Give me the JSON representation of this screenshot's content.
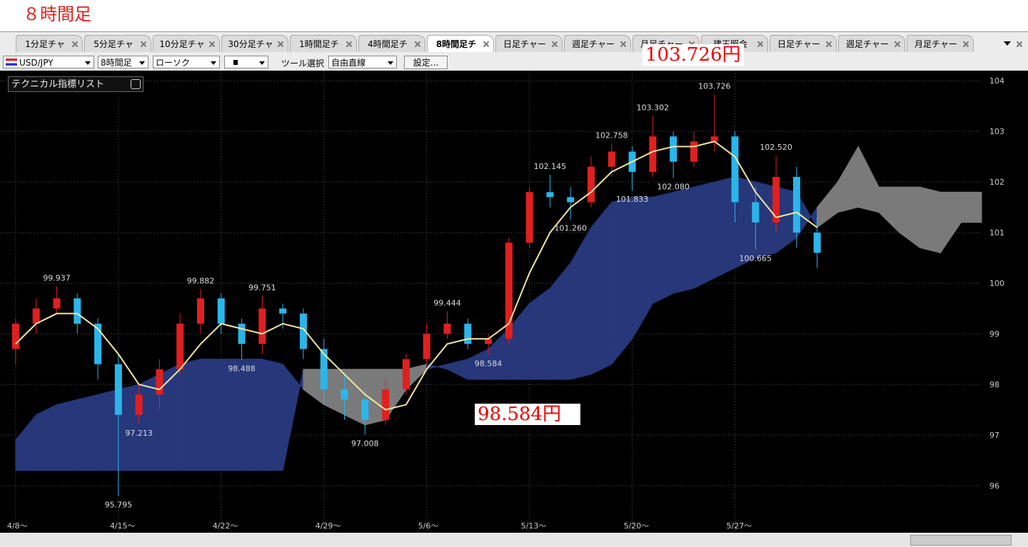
{
  "page_title": "８時間足",
  "tabs": {
    "items": [
      "1分足チャ",
      "5分足チャ",
      "10分足チャ",
      "30分足チャ",
      "1時間足チ",
      "4時間足チ",
      "8時間足チ",
      "日足チャー",
      "週足チャー",
      "月足チャー",
      "建玉照会",
      "日足チャー",
      "週足チャー",
      "月足チャー"
    ],
    "active": 6
  },
  "toolbar": {
    "symbol": "USD/JPY",
    "period": "8時間足",
    "chart_type": "ローソク",
    "tool_label": "ツール選択",
    "tool": "自由直線",
    "settings_button": "設定..."
  },
  "indicator_panel": {
    "title": "テクニカル指標リスト"
  },
  "callouts": [
    "103.726円",
    "98.584円"
  ],
  "chart_data": {
    "type": "candlestick",
    "x": [
      0,
      1,
      2,
      3,
      4,
      5,
      6,
      7,
      8,
      9,
      10,
      11,
      12,
      13,
      14,
      15,
      16,
      17,
      18,
      19,
      20,
      21,
      22,
      23,
      24,
      25,
      26,
      27,
      28,
      29,
      30,
      31,
      32,
      33,
      34,
      35,
      36,
      37,
      38,
      39
    ],
    "open": [
      98.7,
      99.2,
      99.5,
      99.7,
      99.2,
      98.4,
      97.4,
      97.8,
      98.3,
      99.2,
      99.7,
      99.2,
      98.8,
      99.5,
      99.4,
      98.7,
      97.9,
      97.7,
      97.3,
      97.9,
      98.5,
      99.0,
      99.2,
      98.8,
      98.9,
      100.8,
      101.8,
      101.7,
      101.6,
      102.3,
      102.6,
      102.2,
      102.9,
      102.4,
      102.8,
      102.9,
      101.6,
      101.2,
      102.1,
      101.0
    ],
    "high": [
      99.3,
      99.7,
      99.937,
      99.8,
      99.3,
      98.6,
      98.0,
      98.5,
      99.4,
      99.882,
      99.8,
      99.3,
      99.751,
      99.6,
      99.5,
      98.9,
      98.2,
      97.9,
      98.1,
      98.6,
      99.2,
      99.444,
      99.3,
      99.0,
      100.9,
      101.9,
      102.145,
      101.9,
      102.5,
      102.758,
      102.7,
      103.302,
      103.0,
      103.0,
      103.726,
      103.0,
      101.9,
      102.52,
      102.3,
      101.3
    ],
    "low": [
      98.4,
      99.0,
      99.4,
      99.0,
      98.1,
      95.795,
      97.213,
      97.5,
      98.2,
      99.0,
      99.0,
      98.488,
      98.6,
      99.1,
      98.5,
      97.6,
      97.3,
      97.008,
      97.2,
      97.8,
      98.4,
      98.9,
      98.7,
      98.584,
      98.8,
      100.7,
      101.5,
      101.26,
      101.5,
      102.1,
      101.833,
      102.1,
      102.08,
      102.3,
      102.6,
      101.2,
      100.665,
      101.0,
      100.7,
      100.3
    ],
    "close": [
      99.2,
      99.5,
      99.7,
      99.2,
      98.4,
      97.4,
      97.8,
      98.3,
      99.2,
      99.7,
      99.2,
      98.8,
      99.5,
      99.4,
      98.7,
      97.9,
      97.7,
      97.3,
      97.9,
      98.5,
      99.0,
      99.2,
      98.8,
      98.9,
      100.8,
      101.8,
      101.7,
      101.6,
      102.3,
      102.6,
      102.2,
      102.9,
      102.4,
      102.8,
      102.9,
      101.6,
      101.2,
      102.1,
      101.0,
      100.6
    ],
    "up_color": "#e02020",
    "down_color": "#2bb5ea",
    "ma": {
      "color": "#f3e6a0",
      "values": [
        98.8,
        99.2,
        99.4,
        99.4,
        99.1,
        98.6,
        98.0,
        97.9,
        98.3,
        98.8,
        99.2,
        99.1,
        99.0,
        99.2,
        99.1,
        98.6,
        98.2,
        97.8,
        97.5,
        97.6,
        98.3,
        98.8,
        98.9,
        98.9,
        99.2,
        100.2,
        101.0,
        101.5,
        101.8,
        102.2,
        102.4,
        102.6,
        102.7,
        102.7,
        102.8,
        102.5,
        101.8,
        101.3,
        101.4,
        101.1
      ]
    },
    "cloud": {
      "x": [
        0,
        1,
        2,
        3,
        4,
        5,
        6,
        7,
        8,
        9,
        10,
        11,
        12,
        13,
        14,
        15,
        16,
        17,
        18,
        19,
        20,
        21,
        22,
        23,
        24,
        25,
        26,
        27,
        28,
        29,
        30,
        31,
        32,
        33,
        34,
        35,
        36,
        37,
        38,
        39,
        40,
        41,
        42,
        43,
        44,
        45,
        46,
        47
      ],
      "span_a": [
        96.9,
        97.4,
        97.6,
        97.7,
        97.8,
        97.9,
        98.0,
        98.2,
        98.4,
        98.5,
        98.5,
        98.5,
        98.5,
        98.4,
        97.9,
        97.6,
        97.4,
        97.2,
        97.3,
        97.9,
        98.3,
        98.4,
        98.5,
        98.7,
        99.1,
        99.6,
        99.9,
        100.4,
        101.1,
        101.6,
        101.7,
        101.7,
        101.8,
        101.9,
        102.0,
        102.1,
        102.0,
        101.9,
        101.8,
        101.1,
        101.4,
        101.5,
        101.4,
        101.0,
        100.7,
        100.6,
        101.2,
        101.2
      ],
      "span_b": [
        96.3,
        96.3,
        96.3,
        96.3,
        96.3,
        96.3,
        96.3,
        96.3,
        96.3,
        96.3,
        96.3,
        96.3,
        96.3,
        96.3,
        98.3,
        98.3,
        98.3,
        98.3,
        98.3,
        98.3,
        98.4,
        98.3,
        98.1,
        98.1,
        98.1,
        98.1,
        98.1,
        98.1,
        98.2,
        98.4,
        98.9,
        99.6,
        99.8,
        99.9,
        100.1,
        100.3,
        100.5,
        100.6,
        100.9,
        101.5,
        102.0,
        102.7,
        101.9,
        101.9,
        101.9,
        101.8,
        101.8,
        101.8
      ],
      "color_up": "#26377a",
      "color_down": "#7a7a7a"
    },
    "annotations": [
      {
        "x": 2,
        "value": 99.937,
        "label": "99.937"
      },
      {
        "x": 9,
        "value": 99.882,
        "label": "99.882"
      },
      {
        "x": 12,
        "value": 99.751,
        "label": "99.751"
      },
      {
        "x": 11,
        "value": 98.488,
        "label": "98.488"
      },
      {
        "x": 6,
        "value": 97.213,
        "label": "97.213"
      },
      {
        "x": 5,
        "value": 95.795,
        "label": "95.795"
      },
      {
        "x": 17,
        "value": 97.008,
        "label": "97.008"
      },
      {
        "x": 21,
        "value": 99.444,
        "label": "99.444"
      },
      {
        "x": 23,
        "value": 98.584,
        "label": "98.584"
      },
      {
        "x": 26,
        "value": 102.145,
        "label": "102.145"
      },
      {
        "x": 27,
        "value": 101.26,
        "label": "101.260"
      },
      {
        "x": 29,
        "value": 102.758,
        "label": "102.758"
      },
      {
        "x": 30,
        "value": 101.833,
        "label": "101.833"
      },
      {
        "x": 31,
        "value": 103.302,
        "label": "103.302"
      },
      {
        "x": 32,
        "value": 102.08,
        "label": "102.080"
      },
      {
        "x": 34,
        "value": 103.726,
        "label": "103.726"
      },
      {
        "x": 37,
        "value": 102.52,
        "label": "102.520"
      },
      {
        "x": 36,
        "value": 100.665,
        "label": "100.665"
      }
    ],
    "xlim": [
      -0.76,
      47
    ],
    "xticks": [
      {
        "value": 0,
        "label": "4/8～"
      },
      {
        "value": 5,
        "label": "4/15～"
      },
      {
        "value": 10,
        "label": "4/22～"
      },
      {
        "value": 15,
        "label": "4/29～"
      },
      {
        "value": 20,
        "label": "5/6～"
      },
      {
        "value": 25,
        "label": "5/13～"
      },
      {
        "value": 30,
        "label": "5/20～"
      },
      {
        "value": 35,
        "label": "5/27～"
      }
    ],
    "ylim": [
      95.07,
      104.2
    ],
    "yticks": [
      96,
      97,
      98,
      99,
      100,
      101,
      102,
      103,
      104
    ],
    "grid": true
  }
}
